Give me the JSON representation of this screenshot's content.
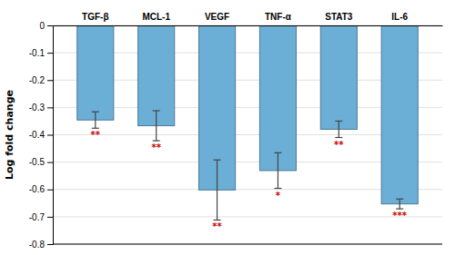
{
  "chart_data": {
    "type": "bar",
    "categories": [
      "TGF-β",
      "MCL-1",
      "VEGF",
      "TNF-α",
      "STAT3",
      "IL-6"
    ],
    "values": [
      -0.346,
      -0.367,
      -0.602,
      -0.531,
      -0.38,
      -0.653
    ],
    "errors": [
      0.03,
      0.055,
      0.11,
      0.065,
      0.03,
      0.018
    ],
    "annotations": [
      "**",
      "**",
      "**",
      "*",
      "**",
      "***"
    ],
    "ylabel": "Log fold change",
    "color": "#6baed6",
    "ylim": [
      -0.8,
      0.0
    ],
    "yticks": [
      0,
      -0.1,
      -0.2,
      -0.3,
      -0.4,
      -0.5,
      -0.6,
      -0.7,
      -0.8
    ],
    "grid": true
  }
}
